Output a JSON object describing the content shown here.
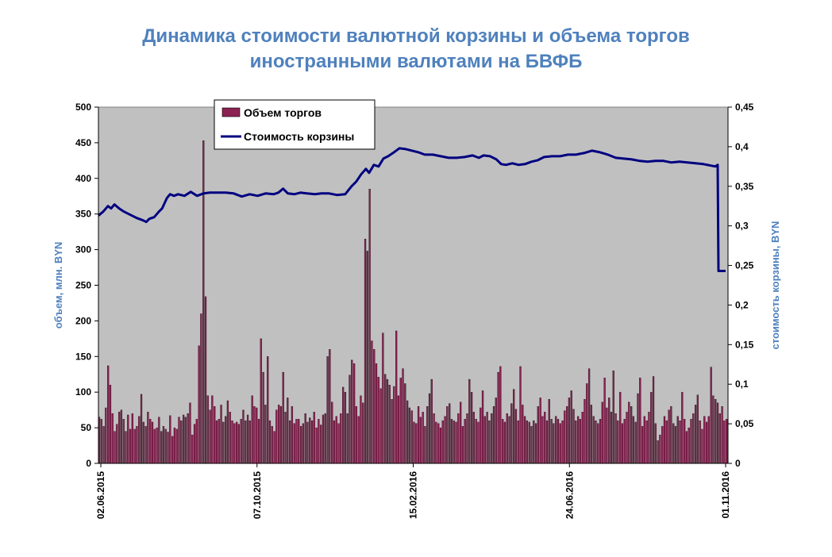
{
  "chart_data": {
    "type": "bar+line",
    "title_line1": "Динамика стоимости валютной корзины и объема торгов",
    "title_line2": "иностранными валютами на БВФБ",
    "ylabel_left": "объем, млн. BYN",
    "ylabel_right": "стоимость корзины, BYN",
    "ylim_left": [
      0,
      500
    ],
    "yticks_left": [
      "0",
      "50",
      "100",
      "150",
      "200",
      "250",
      "300",
      "350",
      "400",
      "450",
      "500"
    ],
    "ylim_right": [
      0,
      0.45
    ],
    "yticks_right": [
      "0",
      "0,05",
      "0,1",
      "0,15",
      "0,2",
      "0,25",
      "0,3",
      "0,35",
      "0,4",
      "0,45"
    ],
    "xtick_labels": [
      "02.06.2015",
      "07.10.2015",
      "15.02.2016",
      "24.06.2016",
      "01.11.2016"
    ],
    "x_range": [
      "02.06.2015",
      "01.11.2016"
    ],
    "legend_position": "top-left",
    "plot_background": "#c0c0c0",
    "bar_color": "#8b2252",
    "line_color": "#000080",
    "series": [
      {
        "name": "Объем торгов",
        "type": "bar",
        "axis": "left",
        "values": [
          65,
          62,
          52,
          78,
          137,
          110,
          70,
          45,
          55,
          72,
          75,
          62,
          45,
          68,
          48,
          70,
          48,
          52,
          66,
          97,
          58,
          52,
          72,
          62,
          58,
          48,
          50,
          65,
          45,
          52,
          48,
          44,
          67,
          38,
          50,
          48,
          65,
          60,
          68,
          65,
          70,
          85,
          40,
          55,
          62,
          165,
          210,
          453,
          234,
          95,
          75,
          95,
          80,
          60,
          62,
          82,
          58,
          66,
          88,
          72,
          60,
          56,
          58,
          55,
          62,
          75,
          60,
          68,
          60,
          95,
          80,
          78,
          62,
          175,
          128,
          82,
          150,
          60,
          52,
          45,
          75,
          82,
          80,
          128,
          72,
          92,
          60,
          80,
          56,
          62,
          62,
          52,
          56,
          70,
          58,
          64,
          60,
          72,
          50,
          62,
          54,
          68,
          70,
          150,
          160,
          86,
          60,
          66,
          56,
          70,
          107,
          100,
          70,
          124,
          145,
          140,
          80,
          66,
          95,
          85,
          315,
          298,
          385,
          172,
          160,
          140,
          121,
          105,
          183,
          125,
          118,
          110,
          90,
          108,
          186,
          95,
          120,
          133,
          112,
          88,
          78,
          74,
          58,
          56,
          80,
          65,
          72,
          52,
          80,
          98,
          118,
          70,
          58,
          56,
          50,
          60,
          66,
          80,
          84,
          62,
          60,
          58,
          70,
          86,
          52,
          62,
          70,
          118,
          100,
          72,
          62,
          58,
          78,
          102,
          66,
          72,
          60,
          70,
          80,
          92,
          128,
          136,
          62,
          58,
          70,
          66,
          84,
          104,
          76,
          60,
          136,
          82,
          66,
          60,
          58,
          52,
          60,
          56,
          80,
          92,
          66,
          72,
          60,
          90,
          62,
          56,
          66,
          62,
          56,
          60,
          74,
          80,
          92,
          102,
          76,
          60,
          66,
          62,
          72,
          90,
          112,
          133,
          82,
          66,
          60,
          56,
          62,
          86,
          120,
          78,
          92,
          72,
          130,
          70,
          60,
          100,
          56,
          62,
          72,
          86,
          80,
          66,
          58,
          98,
          120,
          52,
          66,
          60,
          72,
          100,
          122,
          56,
          32,
          40,
          52,
          66,
          60,
          75,
          80,
          56,
          52,
          66,
          60,
          100,
          62,
          45,
          50,
          62,
          70,
          82,
          96,
          60,
          48,
          66,
          58,
          66,
          135,
          95,
          90,
          85,
          70,
          80,
          60,
          62
        ]
      },
      {
        "name": "Стоимость корзины",
        "type": "line",
        "axis": "right",
        "points": [
          [
            0,
            0.313
          ],
          [
            6,
            0.318
          ],
          [
            12,
            0.325
          ],
          [
            16,
            0.322
          ],
          [
            20,
            0.327
          ],
          [
            26,
            0.322
          ],
          [
            32,
            0.318
          ],
          [
            40,
            0.314
          ],
          [
            48,
            0.31
          ],
          [
            56,
            0.307
          ],
          [
            60,
            0.305
          ],
          [
            64,
            0.309
          ],
          [
            70,
            0.311
          ],
          [
            76,
            0.318
          ],
          [
            80,
            0.322
          ],
          [
            86,
            0.335
          ],
          [
            90,
            0.34
          ],
          [
            95,
            0.338
          ],
          [
            100,
            0.34
          ],
          [
            108,
            0.338
          ],
          [
            116,
            0.343
          ],
          [
            124,
            0.338
          ],
          [
            132,
            0.341
          ],
          [
            140,
            0.342
          ],
          [
            150,
            0.342
          ],
          [
            160,
            0.342
          ],
          [
            170,
            0.341
          ],
          [
            180,
            0.337
          ],
          [
            190,
            0.34
          ],
          [
            200,
            0.338
          ],
          [
            210,
            0.341
          ],
          [
            220,
            0.34
          ],
          [
            226,
            0.342
          ],
          [
            232,
            0.347
          ],
          [
            238,
            0.341
          ],
          [
            246,
            0.34
          ],
          [
            254,
            0.342
          ],
          [
            262,
            0.341
          ],
          [
            272,
            0.34
          ],
          [
            280,
            0.341
          ],
          [
            290,
            0.341
          ],
          [
            300,
            0.339
          ],
          [
            310,
            0.34
          ],
          [
            318,
            0.35
          ],
          [
            324,
            0.356
          ],
          [
            330,
            0.365
          ],
          [
            336,
            0.372
          ],
          [
            340,
            0.367
          ],
          [
            346,
            0.377
          ],
          [
            352,
            0.375
          ],
          [
            358,
            0.385
          ],
          [
            364,
            0.388
          ],
          [
            370,
            0.392
          ],
          [
            378,
            0.398
          ],
          [
            386,
            0.397
          ],
          [
            394,
            0.395
          ],
          [
            402,
            0.393
          ],
          [
            410,
            0.39
          ],
          [
            420,
            0.39
          ],
          [
            430,
            0.388
          ],
          [
            440,
            0.386
          ],
          [
            450,
            0.386
          ],
          [
            460,
            0.387
          ],
          [
            470,
            0.389
          ],
          [
            478,
            0.386
          ],
          [
            484,
            0.389
          ],
          [
            492,
            0.388
          ],
          [
            500,
            0.384
          ],
          [
            506,
            0.378
          ],
          [
            512,
            0.377
          ],
          [
            520,
            0.379
          ],
          [
            528,
            0.377
          ],
          [
            536,
            0.378
          ],
          [
            544,
            0.381
          ],
          [
            552,
            0.383
          ],
          [
            560,
            0.387
          ],
          [
            570,
            0.388
          ],
          [
            580,
            0.388
          ],
          [
            590,
            0.39
          ],
          [
            600,
            0.39
          ],
          [
            610,
            0.392
          ],
          [
            620,
            0.395
          ],
          [
            630,
            0.393
          ],
          [
            640,
            0.39
          ],
          [
            650,
            0.386
          ],
          [
            660,
            0.385
          ],
          [
            670,
            0.384
          ],
          [
            680,
            0.382
          ],
          [
            690,
            0.381
          ],
          [
            700,
            0.382
          ],
          [
            710,
            0.382
          ],
          [
            720,
            0.38
          ],
          [
            730,
            0.381
          ],
          [
            740,
            0.38
          ],
          [
            750,
            0.379
          ],
          [
            760,
            0.378
          ],
          [
            770,
            0.376
          ],
          [
            775,
            0.375
          ],
          [
            778,
            0.377
          ],
          [
            779,
            0.243
          ],
          [
            788,
            0.243
          ]
        ]
      }
    ]
  }
}
